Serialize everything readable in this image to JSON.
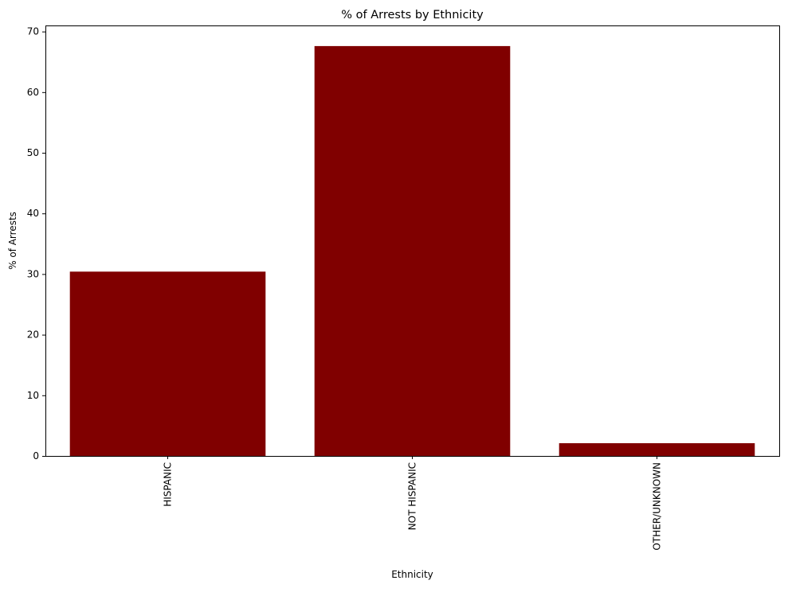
{
  "chart_data": {
    "type": "bar",
    "title": "% of Arrests by Ethnicity",
    "xlabel": "Ethnicity",
    "ylabel": "% of Arrests",
    "categories": [
      "HISPANIC",
      "NOT HISPANIC",
      "OTHER/UNKNOWN"
    ],
    "values": [
      30.4,
      67.6,
      2.1
    ],
    "ylim": [
      0,
      71
    ],
    "yticks": [
      0,
      10,
      20,
      30,
      40,
      50,
      60,
      70
    ],
    "bar_color": "#800000",
    "grid": false,
    "x_tick_rotation_deg": 90
  }
}
